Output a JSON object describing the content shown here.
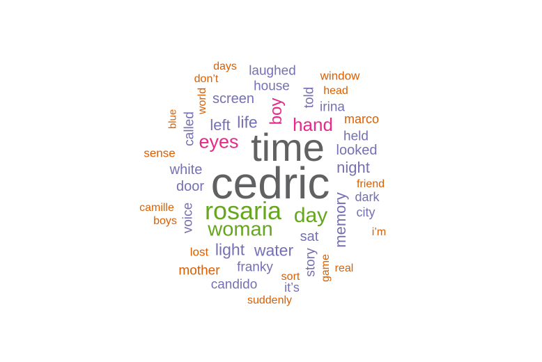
{
  "colors": {
    "gray": "#5f6163",
    "green": "#66a61e",
    "magenta": "#e7298a",
    "purple": "#7570b3",
    "orange": "#d95f02"
  },
  "words": [
    {
      "text": "cedric",
      "color": "gray"
    },
    {
      "text": "time",
      "color": "gray"
    },
    {
      "text": "rosaria",
      "color": "green"
    },
    {
      "text": "woman",
      "color": "green"
    },
    {
      "text": "day",
      "color": "green"
    },
    {
      "text": "eyes",
      "color": "magenta"
    },
    {
      "text": "hand",
      "color": "magenta"
    },
    {
      "text": "boy",
      "color": "magenta"
    },
    {
      "text": "life",
      "color": "purple"
    },
    {
      "text": "left",
      "color": "purple"
    },
    {
      "text": "screen",
      "color": "purple"
    },
    {
      "text": "house",
      "color": "purple"
    },
    {
      "text": "laughed",
      "color": "purple"
    },
    {
      "text": "told",
      "color": "purple"
    },
    {
      "text": "irina",
      "color": "purple"
    },
    {
      "text": "held",
      "color": "purple"
    },
    {
      "text": "looked",
      "color": "purple"
    },
    {
      "text": "night",
      "color": "purple"
    },
    {
      "text": "white",
      "color": "purple"
    },
    {
      "text": "door",
      "color": "purple"
    },
    {
      "text": "called",
      "color": "purple"
    },
    {
      "text": "voice",
      "color": "purple"
    },
    {
      "text": "light",
      "color": "purple"
    },
    {
      "text": "water",
      "color": "purple"
    },
    {
      "text": "sat",
      "color": "purple"
    },
    {
      "text": "memory",
      "color": "purple"
    },
    {
      "text": "dark",
      "color": "purple"
    },
    {
      "text": "city",
      "color": "purple"
    },
    {
      "text": "story",
      "color": "purple"
    },
    {
      "text": "franky",
      "color": "purple"
    },
    {
      "text": "candido",
      "color": "purple"
    },
    {
      "text": "it’s",
      "color": "purple"
    },
    {
      "text": "days",
      "color": "orange"
    },
    {
      "text": "don’t",
      "color": "orange"
    },
    {
      "text": "world",
      "color": "orange"
    },
    {
      "text": "window",
      "color": "orange"
    },
    {
      "text": "head",
      "color": "orange"
    },
    {
      "text": "marco",
      "color": "orange"
    },
    {
      "text": "blue",
      "color": "orange"
    },
    {
      "text": "sense",
      "color": "orange"
    },
    {
      "text": "friend",
      "color": "orange"
    },
    {
      "text": "camille",
      "color": "orange"
    },
    {
      "text": "boys",
      "color": "orange"
    },
    {
      "text": "i’m",
      "color": "orange"
    },
    {
      "text": "lost",
      "color": "orange"
    },
    {
      "text": "mother",
      "color": "orange"
    },
    {
      "text": "game",
      "color": "orange"
    },
    {
      "text": "real",
      "color": "orange"
    },
    {
      "text": "sort",
      "color": "orange"
    },
    {
      "text": "suddenly",
      "color": "orange"
    }
  ]
}
